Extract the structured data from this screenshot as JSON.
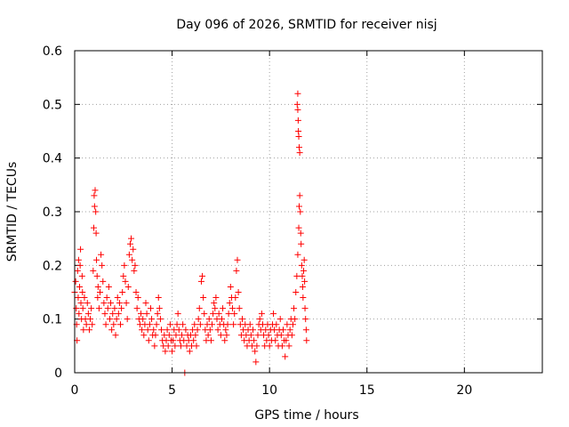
{
  "chart_data": {
    "type": "scatter",
    "title": "Day 096 of 2026, SRMTID for receiver nisj",
    "xlabel": "GPS time / hours",
    "ylabel": "SRMTID / TECUs",
    "xlim": [
      0,
      24
    ],
    "ylim": [
      0,
      0.6
    ],
    "x_ticks": [
      0,
      5,
      10,
      15,
      20
    ],
    "y_ticks": [
      0,
      0.1,
      0.2,
      0.3,
      0.4,
      0.5,
      0.6
    ],
    "x_tick_labels": [
      "0",
      "5",
      "10",
      "15",
      "20"
    ],
    "y_tick_labels": [
      "0",
      "0.1",
      "0.2",
      "0.3",
      "0.4",
      "0.5",
      "0.6"
    ],
    "grid": true,
    "marker": "+",
    "marker_color": "#ff0000",
    "series": [
      {
        "name": "SRMTID",
        "points": [
          [
            0.0,
            0.15
          ],
          [
            0.05,
            0.17
          ],
          [
            0.08,
            0.12
          ],
          [
            0.1,
            0.09
          ],
          [
            0.12,
            0.06
          ],
          [
            0.15,
            0.19
          ],
          [
            0.18,
            0.14
          ],
          [
            0.2,
            0.21
          ],
          [
            0.22,
            0.11
          ],
          [
            0.25,
            0.16
          ],
          [
            0.28,
            0.2
          ],
          [
            0.3,
            0.23
          ],
          [
            0.32,
            0.13
          ],
          [
            0.35,
            0.1
          ],
          [
            0.38,
            0.18
          ],
          [
            0.4,
            0.15
          ],
          [
            0.42,
            0.12
          ],
          [
            0.45,
            0.08
          ],
          [
            0.5,
            0.14
          ],
          [
            0.55,
            0.1
          ],
          [
            0.6,
            0.09
          ],
          [
            0.65,
            0.13
          ],
          [
            0.7,
            0.11
          ],
          [
            0.75,
            0.08
          ],
          [
            0.8,
            0.1
          ],
          [
            0.85,
            0.12
          ],
          [
            0.9,
            0.09
          ],
          [
            0.95,
            0.19
          ],
          [
            0.98,
            0.27
          ],
          [
            1.0,
            0.33
          ],
          [
            1.02,
            0.31
          ],
          [
            1.05,
            0.34
          ],
          [
            1.08,
            0.3
          ],
          [
            1.1,
            0.26
          ],
          [
            1.12,
            0.21
          ],
          [
            1.15,
            0.18
          ],
          [
            1.18,
            0.14
          ],
          [
            1.2,
            0.16
          ],
          [
            1.25,
            0.12
          ],
          [
            1.3,
            0.15
          ],
          [
            1.35,
            0.22
          ],
          [
            1.4,
            0.2
          ],
          [
            1.45,
            0.17
          ],
          [
            1.5,
            0.13
          ],
          [
            1.55,
            0.11
          ],
          [
            1.6,
            0.09
          ],
          [
            1.65,
            0.14
          ],
          [
            1.7,
            0.12
          ],
          [
            1.75,
            0.16
          ],
          [
            1.8,
            0.1
          ],
          [
            1.85,
            0.13
          ],
          [
            1.9,
            0.08
          ],
          [
            1.95,
            0.11
          ],
          [
            2.0,
            0.09
          ],
          [
            2.05,
            0.12
          ],
          [
            2.1,
            0.07
          ],
          [
            2.15,
            0.1
          ],
          [
            2.2,
            0.14
          ],
          [
            2.25,
            0.11
          ],
          [
            2.3,
            0.13
          ],
          [
            2.35,
            0.09
          ],
          [
            2.4,
            0.12
          ],
          [
            2.45,
            0.15
          ],
          [
            2.5,
            0.18
          ],
          [
            2.55,
            0.2
          ],
          [
            2.6,
            0.17
          ],
          [
            2.65,
            0.13
          ],
          [
            2.7,
            0.1
          ],
          [
            2.75,
            0.16
          ],
          [
            2.8,
            0.22
          ],
          [
            2.85,
            0.24
          ],
          [
            2.9,
            0.25
          ],
          [
            2.95,
            0.21
          ],
          [
            3.0,
            0.23
          ],
          [
            3.05,
            0.19
          ],
          [
            3.1,
            0.2
          ],
          [
            3.15,
            0.15
          ],
          [
            3.2,
            0.12
          ],
          [
            3.25,
            0.14
          ],
          [
            3.3,
            0.1
          ],
          [
            3.35,
            0.09
          ],
          [
            3.4,
            0.11
          ],
          [
            3.45,
            0.08
          ],
          [
            3.5,
            0.1
          ],
          [
            3.55,
            0.07
          ],
          [
            3.6,
            0.09
          ],
          [
            3.65,
            0.13
          ],
          [
            3.7,
            0.11
          ],
          [
            3.75,
            0.08
          ],
          [
            3.8,
            0.06
          ],
          [
            3.85,
            0.09
          ],
          [
            3.9,
            0.12
          ],
          [
            3.95,
            0.1
          ],
          [
            4.0,
            0.07
          ],
          [
            4.05,
            0.08
          ],
          [
            4.1,
            0.05
          ],
          [
            4.15,
            0.07
          ],
          [
            4.2,
            0.09
          ],
          [
            4.25,
            0.11
          ],
          [
            4.3,
            0.14
          ],
          [
            4.35,
            0.12
          ],
          [
            4.4,
            0.1
          ],
          [
            4.45,
            0.08
          ],
          [
            4.5,
            0.06
          ],
          [
            4.55,
            0.05
          ],
          [
            4.6,
            0.07
          ],
          [
            4.65,
            0.04
          ],
          [
            4.7,
            0.06
          ],
          [
            4.75,
            0.08
          ],
          [
            4.8,
            0.05
          ],
          [
            4.85,
            0.07
          ],
          [
            4.9,
            0.09
          ],
          [
            4.95,
            0.06
          ],
          [
            5.0,
            0.04
          ],
          [
            5.05,
            0.06
          ],
          [
            5.1,
            0.08
          ],
          [
            5.15,
            0.05
          ],
          [
            5.2,
            0.07
          ],
          [
            5.25,
            0.09
          ],
          [
            5.3,
            0.11
          ],
          [
            5.35,
            0.08
          ],
          [
            5.4,
            0.06
          ],
          [
            5.45,
            0.05
          ],
          [
            5.5,
            0.07
          ],
          [
            5.55,
            0.09
          ],
          [
            5.6,
            0.06
          ],
          [
            5.65,
            0.0
          ],
          [
            5.7,
            0.08
          ],
          [
            5.75,
            0.05
          ],
          [
            5.8,
            0.07
          ],
          [
            5.85,
            0.06
          ],
          [
            5.9,
            0.04
          ],
          [
            5.95,
            0.07
          ],
          [
            6.0,
            0.05
          ],
          [
            6.05,
            0.08
          ],
          [
            6.1,
            0.06
          ],
          [
            6.15,
            0.09
          ],
          [
            6.2,
            0.07
          ],
          [
            6.25,
            0.05
          ],
          [
            6.3,
            0.08
          ],
          [
            6.35,
            0.1
          ],
          [
            6.4,
            0.12
          ],
          [
            6.45,
            0.09
          ],
          [
            6.5,
            0.17
          ],
          [
            6.55,
            0.18
          ],
          [
            6.6,
            0.14
          ],
          [
            6.65,
            0.11
          ],
          [
            6.7,
            0.08
          ],
          [
            6.75,
            0.06
          ],
          [
            6.8,
            0.09
          ],
          [
            6.85,
            0.07
          ],
          [
            6.9,
            0.1
          ],
          [
            6.95,
            0.08
          ],
          [
            7.0,
            0.06
          ],
          [
            7.05,
            0.09
          ],
          [
            7.1,
            0.11
          ],
          [
            7.15,
            0.13
          ],
          [
            7.2,
            0.12
          ],
          [
            7.25,
            0.14
          ],
          [
            7.3,
            0.1
          ],
          [
            7.35,
            0.08
          ],
          [
            7.4,
            0.11
          ],
          [
            7.45,
            0.09
          ],
          [
            7.5,
            0.07
          ],
          [
            7.55,
            0.1
          ],
          [
            7.6,
            0.12
          ],
          [
            7.65,
            0.09
          ],
          [
            7.7,
            0.06
          ],
          [
            7.75,
            0.08
          ],
          [
            7.8,
            0.07
          ],
          [
            7.85,
            0.09
          ],
          [
            7.9,
            0.11
          ],
          [
            7.95,
            0.13
          ],
          [
            8.0,
            0.16
          ],
          [
            8.05,
            0.14
          ],
          [
            8.1,
            0.12
          ],
          [
            8.15,
            0.09
          ],
          [
            8.2,
            0.11
          ],
          [
            8.25,
            0.14
          ],
          [
            8.3,
            0.19
          ],
          [
            8.35,
            0.21
          ],
          [
            8.4,
            0.15
          ],
          [
            8.45,
            0.12
          ],
          [
            8.5,
            0.09
          ],
          [
            8.55,
            0.07
          ],
          [
            8.6,
            0.1
          ],
          [
            8.65,
            0.08
          ],
          [
            8.7,
            0.06
          ],
          [
            8.75,
            0.09
          ],
          [
            8.8,
            0.07
          ],
          [
            8.85,
            0.05
          ],
          [
            8.9,
            0.08
          ],
          [
            8.95,
            0.06
          ],
          [
            9.0,
            0.09
          ],
          [
            9.05,
            0.07
          ],
          [
            9.1,
            0.05
          ],
          [
            9.15,
            0.08
          ],
          [
            9.2,
            0.06
          ],
          [
            9.25,
            0.04
          ],
          [
            9.3,
            0.02
          ],
          [
            9.35,
            0.05
          ],
          [
            9.4,
            0.07
          ],
          [
            9.45,
            0.09
          ],
          [
            9.5,
            0.1
          ],
          [
            9.55,
            0.08
          ],
          [
            9.6,
            0.11
          ],
          [
            9.65,
            0.09
          ],
          [
            9.7,
            0.07
          ],
          [
            9.75,
            0.05
          ],
          [
            9.8,
            0.08
          ],
          [
            9.85,
            0.06
          ],
          [
            9.9,
            0.09
          ],
          [
            9.95,
            0.07
          ],
          [
            10.0,
            0.05
          ],
          [
            10.05,
            0.08
          ],
          [
            10.1,
            0.06
          ],
          [
            10.15,
            0.09
          ],
          [
            10.2,
            0.11
          ],
          [
            10.25,
            0.08
          ],
          [
            10.3,
            0.06
          ],
          [
            10.35,
            0.09
          ],
          [
            10.4,
            0.07
          ],
          [
            10.45,
            0.05
          ],
          [
            10.5,
            0.08
          ],
          [
            10.55,
            0.1
          ],
          [
            10.6,
            0.07
          ],
          [
            10.65,
            0.05
          ],
          [
            10.7,
            0.08
          ],
          [
            10.75,
            0.06
          ],
          [
            10.8,
            0.03
          ],
          [
            10.85,
            0.06
          ],
          [
            10.9,
            0.09
          ],
          [
            10.95,
            0.07
          ],
          [
            11.0,
            0.05
          ],
          [
            11.05,
            0.08
          ],
          [
            11.1,
            0.1
          ],
          [
            11.15,
            0.07
          ],
          [
            11.2,
            0.09
          ],
          [
            11.25,
            0.12
          ],
          [
            11.3,
            0.1
          ],
          [
            11.35,
            0.15
          ],
          [
            11.4,
            0.18
          ],
          [
            11.45,
            0.22
          ],
          [
            11.5,
            0.27
          ],
          [
            11.52,
            0.31
          ],
          [
            11.55,
            0.33
          ],
          [
            11.58,
            0.3
          ],
          [
            11.6,
            0.26
          ],
          [
            11.62,
            0.24
          ],
          [
            11.65,
            0.2
          ],
          [
            11.68,
            0.18
          ],
          [
            11.7,
            0.16
          ],
          [
            11.72,
            0.14
          ],
          [
            11.75,
            0.19
          ],
          [
            11.78,
            0.21
          ],
          [
            11.8,
            0.17
          ],
          [
            11.82,
            0.12
          ],
          [
            11.85,
            0.1
          ],
          [
            11.88,
            0.08
          ],
          [
            11.9,
            0.06
          ],
          [
            11.45,
            0.52
          ],
          [
            11.45,
            0.49
          ],
          [
            11.47,
            0.47
          ],
          [
            11.48,
            0.45
          ],
          [
            11.5,
            0.44
          ],
          [
            11.52,
            0.42
          ],
          [
            11.55,
            0.41
          ],
          [
            11.42,
            0.5
          ]
        ]
      }
    ]
  }
}
